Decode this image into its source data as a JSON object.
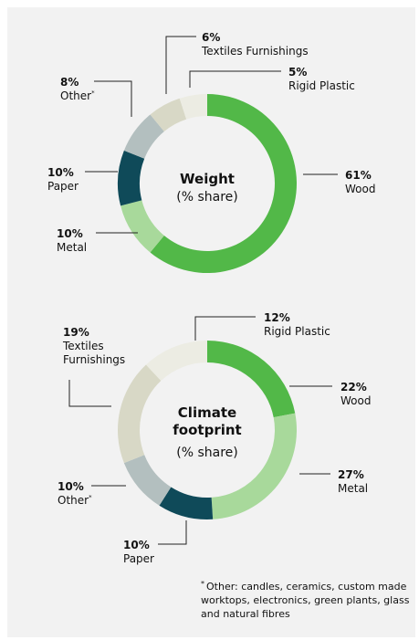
{
  "chart_data": [
    {
      "type": "pie",
      "donut": true,
      "title": [
        "Weight",
        "(% share)"
      ],
      "categories": [
        "Wood",
        "Metal",
        "Paper",
        "Other",
        "Textiles Furnishings",
        "Rigid Plastic"
      ],
      "values": [
        61,
        10,
        10,
        8,
        6,
        5
      ],
      "value_labels": [
        "61%",
        "10%",
        "10%",
        "8%",
        "6%",
        "5%"
      ],
      "label_lines": [
        [
          "Wood"
        ],
        [
          "Metal"
        ],
        [
          "Paper"
        ],
        [
          "Other"
        ],
        [
          "Textiles Furnishings"
        ],
        [
          "Rigid Plastic"
        ]
      ],
      "label_markers": [
        "",
        "",
        "",
        "*",
        "",
        ""
      ],
      "colors": [
        "#52b848",
        "#a8d99b",
        "#0f4a59",
        "#b3bfbf",
        "#d8d8c6",
        "#ecece3"
      ]
    },
    {
      "type": "pie",
      "donut": true,
      "title": [
        "Climate",
        "footprint",
        "(% share)"
      ],
      "categories": [
        "Wood",
        "Metal",
        "Paper",
        "Other",
        "Textiles Furnishings",
        "Rigid Plastic"
      ],
      "values": [
        22,
        27,
        10,
        10,
        19,
        12
      ],
      "value_labels": [
        "22%",
        "27%",
        "10%",
        "10%",
        "19%",
        "12%"
      ],
      "label_lines": [
        [
          "Wood"
        ],
        [
          "Metal"
        ],
        [
          "Paper"
        ],
        [
          "Other"
        ],
        [
          "Textiles",
          "Furnishings"
        ],
        [
          "Rigid Plastic"
        ]
      ],
      "label_markers": [
        "",
        "",
        "",
        "*",
        "",
        ""
      ],
      "colors": [
        "#52b848",
        "#a8d99b",
        "#0f4a59",
        "#b3bfbf",
        "#d8d8c6",
        "#ecece3"
      ]
    }
  ],
  "footnote": {
    "marker": "*",
    "text": "Other: candles, ceramics, custom made worktops, electronics, green plants, glass and natural fibres"
  }
}
